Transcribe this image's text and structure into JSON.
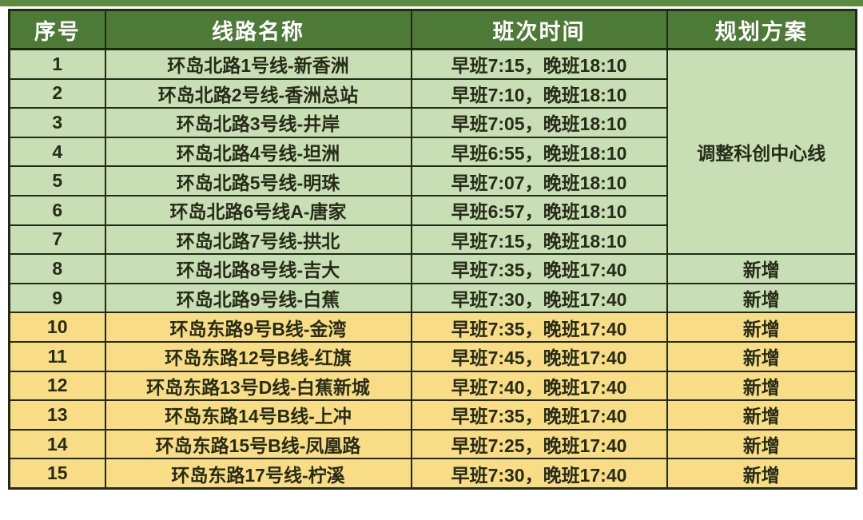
{
  "page": {
    "background": "#ffffff",
    "top_strip_color": "#5c8a40"
  },
  "colors": {
    "header_bg": "#4e7a38",
    "header_text": "#ffffff",
    "green_row_bg": "#c8dfb5",
    "yellow_row_bg": "#f8dd86",
    "border": "#212a15"
  },
  "table": {
    "headers": [
      "序号",
      "线路名称",
      "班次时间",
      "规划方案"
    ],
    "merged_plan": "调整科创中心线",
    "rows": [
      {
        "no": "1",
        "name": "环岛北路1号线-新香洲",
        "time": "早班7:15，晚班18:10",
        "plan": "调整科创中心线"
      },
      {
        "no": "2",
        "name": "环岛北路2号线-香洲总站",
        "time": "早班7:10，晚班18:10",
        "plan": ""
      },
      {
        "no": "3",
        "name": "环岛北路3号线-井岸",
        "time": "早班7:05，晚班18:10",
        "plan": ""
      },
      {
        "no": "4",
        "name": "环岛北路4号线-坦洲",
        "time": "早班6:55，晚班18:10",
        "plan": ""
      },
      {
        "no": "5",
        "name": "环岛北路5号线-明珠",
        "time": "早班7:07，晚班18:10",
        "plan": ""
      },
      {
        "no": "6",
        "name": "环岛北路6号线A-唐家",
        "time": "早班6:57，晚班18:10",
        "plan": ""
      },
      {
        "no": "7",
        "name": "环岛北路7号线-拱北",
        "time": "早班7:15，晚班18:10",
        "plan": ""
      },
      {
        "no": "8",
        "name": "环岛北路8号线-吉大",
        "time": "早班7:35，晚班17:40",
        "plan": "新增"
      },
      {
        "no": "9",
        "name": "环岛北路9号线-白蕉",
        "time": "早班7:30，晚班17:40",
        "plan": "新增"
      },
      {
        "no": "10",
        "name": "环岛东路9号B线-金湾",
        "time": "早班7:35，晚班17:40",
        "plan": "新增"
      },
      {
        "no": "11",
        "name": "环岛东路12号B线-红旗",
        "time": "早班7:45，晚班17:40",
        "plan": "新增"
      },
      {
        "no": "12",
        "name": "环岛东路13号D线-白蕉新城",
        "time": "早班7:40，晚班17:40",
        "plan": "新增"
      },
      {
        "no": "13",
        "name": "环岛东路14号B线-上冲",
        "time": "早班7:35，晚班17:40",
        "plan": "新增"
      },
      {
        "no": "14",
        "name": "环岛东路15号B线-凤凰路",
        "time": "早班7:25，晚班17:40",
        "plan": "新增"
      },
      {
        "no": "15",
        "name": "环岛东路17号线-柠溪",
        "time": "早班7:30，晚班17:40",
        "plan": "新增"
      }
    ]
  }
}
